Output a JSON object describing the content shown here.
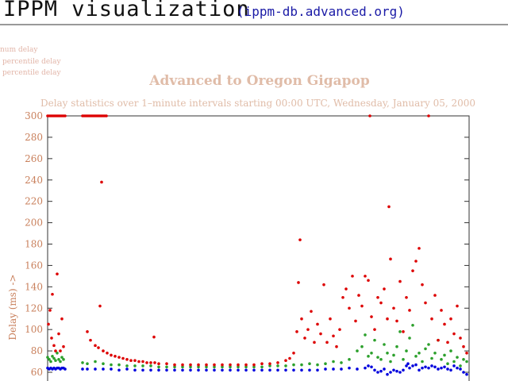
{
  "header": {
    "title": "IPPM visualization",
    "link_text": "(ippm-db.advanced.org)"
  },
  "legend": {
    "items": [
      {
        "label": "num delay",
        "color": "#0000dd"
      },
      {
        "label": "percentile delay",
        "color": "#2ca02c"
      },
      {
        "label": "percentile delay",
        "color": "#dd0000"
      }
    ]
  },
  "chart_data": {
    "type": "scatter",
    "title": "Advanced  to  Oregon Gigapop",
    "subtitle": "Delay statistics over 1–minute intervals starting 00:00 UTC, Wednesday, January 05, 2000",
    "ylabel": "Delay (ms)  ->",
    "xlabel": "",
    "ylim": [
      60,
      300
    ],
    "yticks": [
      300,
      280,
      260,
      240,
      220,
      200,
      180,
      160,
      140,
      120,
      100,
      80,
      60
    ],
    "grid": false,
    "series": [
      {
        "color": "#0000dd",
        "points": [
          [
            60,
            64
          ],
          [
            62,
            63
          ],
          [
            64,
            64
          ],
          [
            66,
            63
          ],
          [
            68,
            64
          ],
          [
            70,
            63
          ],
          [
            72,
            64
          ],
          [
            74,
            64
          ],
          [
            76,
            63
          ],
          [
            78,
            64
          ],
          [
            80,
            64
          ],
          [
            82,
            63
          ],
          [
            104,
            63
          ],
          [
            110,
            63
          ],
          [
            120,
            63
          ],
          [
            130,
            63
          ],
          [
            140,
            63
          ],
          [
            150,
            62
          ],
          [
            160,
            63
          ],
          [
            170,
            62
          ],
          [
            180,
            62
          ],
          [
            190,
            62
          ],
          [
            200,
            62
          ],
          [
            210,
            62
          ],
          [
            220,
            62
          ],
          [
            230,
            62
          ],
          [
            240,
            62
          ],
          [
            250,
            62
          ],
          [
            260,
            62
          ],
          [
            270,
            62
          ],
          [
            280,
            62
          ],
          [
            290,
            62
          ],
          [
            300,
            62
          ],
          [
            310,
            62
          ],
          [
            320,
            62
          ],
          [
            330,
            62
          ],
          [
            340,
            62
          ],
          [
            350,
            62
          ],
          [
            360,
            62
          ],
          [
            370,
            62
          ],
          [
            380,
            62
          ],
          [
            390,
            62
          ],
          [
            400,
            62
          ],
          [
            410,
            63
          ],
          [
            420,
            63
          ],
          [
            430,
            63
          ],
          [
            440,
            64
          ],
          [
            450,
            63
          ],
          [
            460,
            64
          ],
          [
            464,
            66
          ],
          [
            468,
            65
          ],
          [
            472,
            62
          ],
          [
            476,
            60
          ],
          [
            480,
            61
          ],
          [
            484,
            63
          ],
          [
            488,
            58
          ],
          [
            492,
            60
          ],
          [
            496,
            62
          ],
          [
            500,
            61
          ],
          [
            504,
            60
          ],
          [
            508,
            62
          ],
          [
            512,
            66
          ],
          [
            514,
            68
          ],
          [
            516,
            64
          ],
          [
            520,
            66
          ],
          [
            524,
            67
          ],
          [
            528,
            62
          ],
          [
            532,
            64
          ],
          [
            536,
            65
          ],
          [
            540,
            64
          ],
          [
            544,
            66
          ],
          [
            548,
            65
          ],
          [
            552,
            63
          ],
          [
            556,
            64
          ],
          [
            560,
            65
          ],
          [
            564,
            63
          ],
          [
            568,
            62
          ],
          [
            572,
            66
          ],
          [
            576,
            64
          ],
          [
            580,
            63
          ],
          [
            584,
            60
          ],
          [
            588,
            58
          ]
        ]
      },
      {
        "color": "#2ca02c",
        "points": [
          [
            60,
            74
          ],
          [
            62,
            72
          ],
          [
            64,
            70
          ],
          [
            66,
            75
          ],
          [
            68,
            73
          ],
          [
            70,
            71
          ],
          [
            72,
            78
          ],
          [
            74,
            72
          ],
          [
            76,
            70
          ],
          [
            78,
            74
          ],
          [
            80,
            72
          ],
          [
            104,
            69
          ],
          [
            110,
            68
          ],
          [
            120,
            70
          ],
          [
            130,
            68
          ],
          [
            140,
            67
          ],
          [
            150,
            67
          ],
          [
            160,
            66
          ],
          [
            170,
            66
          ],
          [
            180,
            66
          ],
          [
            190,
            66
          ],
          [
            200,
            65
          ],
          [
            210,
            65
          ],
          [
            220,
            65
          ],
          [
            230,
            65
          ],
          [
            240,
            65
          ],
          [
            250,
            65
          ],
          [
            260,
            65
          ],
          [
            270,
            65
          ],
          [
            280,
            65
          ],
          [
            290,
            65
          ],
          [
            300,
            65
          ],
          [
            310,
            65
          ],
          [
            320,
            65
          ],
          [
            330,
            65
          ],
          [
            340,
            66
          ],
          [
            350,
            66
          ],
          [
            360,
            66
          ],
          [
            370,
            67
          ],
          [
            380,
            67
          ],
          [
            390,
            68
          ],
          [
            400,
            67
          ],
          [
            410,
            68
          ],
          [
            420,
            70
          ],
          [
            430,
            69
          ],
          [
            440,
            72
          ],
          [
            450,
            80
          ],
          [
            456,
            84
          ],
          [
            460,
            95
          ],
          [
            464,
            75
          ],
          [
            468,
            78
          ],
          [
            472,
            90
          ],
          [
            476,
            74
          ],
          [
            480,
            72
          ],
          [
            484,
            86
          ],
          [
            488,
            78
          ],
          [
            492,
            70
          ],
          [
            496,
            76
          ],
          [
            500,
            84
          ],
          [
            504,
            98
          ],
          [
            508,
            72
          ],
          [
            512,
            80
          ],
          [
            516,
            92
          ],
          [
            520,
            104
          ],
          [
            524,
            75
          ],
          [
            528,
            78
          ],
          [
            532,
            70
          ],
          [
            536,
            82
          ],
          [
            540,
            86
          ],
          [
            544,
            73
          ],
          [
            548,
            78
          ],
          [
            552,
            90
          ],
          [
            556,
            72
          ],
          [
            560,
            76
          ],
          [
            564,
            68
          ],
          [
            568,
            80
          ],
          [
            572,
            70
          ],
          [
            576,
            74
          ],
          [
            580,
            66
          ],
          [
            584,
            72
          ],
          [
            588,
            70
          ]
        ]
      },
      {
        "color": "#dd0000",
        "points": [
          [
            60,
            300
          ],
          [
            62,
            300
          ],
          [
            64,
            300
          ],
          [
            66,
            300
          ],
          [
            68,
            300
          ],
          [
            70,
            300
          ],
          [
            72,
            300
          ],
          [
            74,
            300
          ],
          [
            76,
            300
          ],
          [
            78,
            300
          ],
          [
            80,
            300
          ],
          [
            82,
            300
          ],
          [
            61,
            105
          ],
          [
            63,
            118
          ],
          [
            65,
            92
          ],
          [
            66,
            133
          ],
          [
            68,
            85
          ],
          [
            70,
            80
          ],
          [
            72,
            152
          ],
          [
            74,
            96
          ],
          [
            76,
            80
          ],
          [
            78,
            110
          ],
          [
            80,
            84
          ],
          [
            104,
            300
          ],
          [
            106,
            300
          ],
          [
            108,
            300
          ],
          [
            110,
            300
          ],
          [
            112,
            300
          ],
          [
            114,
            300
          ],
          [
            116,
            300
          ],
          [
            118,
            300
          ],
          [
            120,
            300
          ],
          [
            122,
            300
          ],
          [
            124,
            300
          ],
          [
            126,
            300
          ],
          [
            128,
            300
          ],
          [
            130,
            300
          ],
          [
            132,
            300
          ],
          [
            134,
            300
          ],
          [
            128,
            238
          ],
          [
            126,
            122
          ],
          [
            110,
            98
          ],
          [
            114,
            90
          ],
          [
            120,
            85
          ],
          [
            124,
            83
          ],
          [
            130,
            80
          ],
          [
            135,
            78
          ],
          [
            140,
            76
          ],
          [
            145,
            75
          ],
          [
            150,
            74
          ],
          [
            155,
            73
          ],
          [
            160,
            72
          ],
          [
            165,
            71
          ],
          [
            170,
            71
          ],
          [
            175,
            70
          ],
          [
            180,
            70
          ],
          [
            185,
            69
          ],
          [
            190,
            69
          ],
          [
            194,
            93
          ],
          [
            195,
            69
          ],
          [
            200,
            68
          ],
          [
            210,
            68
          ],
          [
            220,
            67
          ],
          [
            230,
            67
          ],
          [
            240,
            67
          ],
          [
            250,
            67
          ],
          [
            260,
            67
          ],
          [
            270,
            67
          ],
          [
            280,
            67
          ],
          [
            290,
            67
          ],
          [
            300,
            67
          ],
          [
            310,
            67
          ],
          [
            320,
            67
          ],
          [
            330,
            68
          ],
          [
            340,
            68
          ],
          [
            350,
            69
          ],
          [
            360,
            71
          ],
          [
            365,
            73
          ],
          [
            370,
            78
          ],
          [
            374,
            98
          ],
          [
            376,
            144
          ],
          [
            378,
            184
          ],
          [
            380,
            110
          ],
          [
            384,
            92
          ],
          [
            388,
            100
          ],
          [
            392,
            117
          ],
          [
            396,
            88
          ],
          [
            400,
            105
          ],
          [
            404,
            96
          ],
          [
            408,
            142
          ],
          [
            412,
            88
          ],
          [
            416,
            110
          ],
          [
            420,
            94
          ],
          [
            424,
            84
          ],
          [
            428,
            100
          ],
          [
            432,
            130
          ],
          [
            436,
            138
          ],
          [
            440,
            120
          ],
          [
            444,
            150
          ],
          [
            448,
            108
          ],
          [
            452,
            132
          ],
          [
            456,
            122
          ],
          [
            460,
            150
          ],
          [
            464,
            146
          ],
          [
            466,
            300
          ],
          [
            468,
            112
          ],
          [
            472,
            100
          ],
          [
            476,
            130
          ],
          [
            480,
            125
          ],
          [
            484,
            138
          ],
          [
            488,
            110
          ],
          [
            490,
            215
          ],
          [
            492,
            166
          ],
          [
            496,
            120
          ],
          [
            500,
            108
          ],
          [
            504,
            145
          ],
          [
            508,
            98
          ],
          [
            512,
            130
          ],
          [
            516,
            118
          ],
          [
            520,
            155
          ],
          [
            524,
            164
          ],
          [
            528,
            176
          ],
          [
            532,
            142
          ],
          [
            536,
            125
          ],
          [
            540,
            300
          ],
          [
            544,
            110
          ],
          [
            548,
            132
          ],
          [
            552,
            90
          ],
          [
            556,
            118
          ],
          [
            560,
            105
          ],
          [
            564,
            88
          ],
          [
            568,
            110
          ],
          [
            572,
            96
          ],
          [
            576,
            122
          ],
          [
            580,
            92
          ],
          [
            584,
            84
          ],
          [
            588,
            78
          ]
        ]
      }
    ]
  }
}
